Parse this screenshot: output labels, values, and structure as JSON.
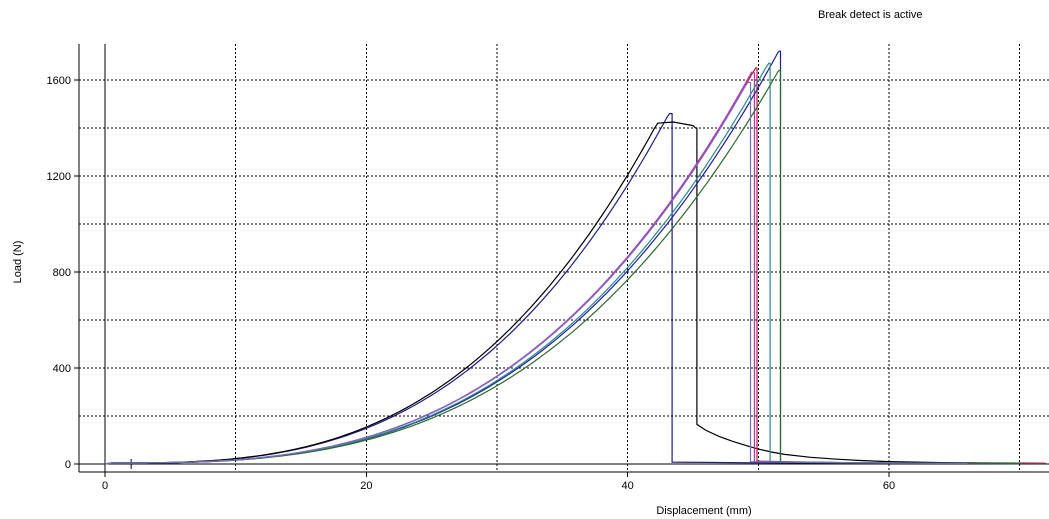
{
  "status_text": "Break detect is active",
  "chart_data": {
    "type": "line",
    "xlabel": "Displacement (mm)",
    "ylabel": "Load (N)",
    "xlim": [
      -2,
      72
    ],
    "ylim": [
      -30,
      1750
    ],
    "x_ticks": [
      0,
      20,
      40,
      60
    ],
    "y_ticks": [
      0,
      400,
      800,
      1200,
      1600
    ],
    "x_grid": [
      10,
      20,
      30,
      40,
      50,
      60,
      70
    ],
    "y_grid": [
      200,
      400,
      600,
      800,
      1000,
      1200,
      1400,
      1600
    ],
    "grid": true,
    "legend": "none",
    "series": [
      {
        "color": "#1c1c8c",
        "peak_x": 43.2,
        "peak_y": 1460,
        "break_x": 43.4,
        "tail": [
          [
            43.4,
            8
          ],
          [
            50,
            5
          ],
          [
            60,
            3
          ],
          [
            68,
            2
          ]
        ]
      },
      {
        "color": "#000000",
        "peak_x": 42.3,
        "peak_y": 1420,
        "plateau": [
          [
            42.3,
            1420
          ],
          [
            43.5,
            1425
          ],
          [
            45.0,
            1410
          ],
          [
            45.2,
            1400
          ]
        ],
        "break_x": 45.3,
        "tail": [
          [
            45.3,
            165
          ],
          [
            46,
            140
          ],
          [
            47,
            115
          ],
          [
            48,
            95
          ],
          [
            49,
            78
          ],
          [
            50,
            62
          ],
          [
            51,
            50
          ],
          [
            52,
            40
          ],
          [
            54,
            28
          ],
          [
            56,
            20
          ],
          [
            58,
            14
          ],
          [
            60,
            10
          ],
          [
            64,
            6
          ],
          [
            68,
            4
          ],
          [
            72,
            3
          ]
        ]
      },
      {
        "color": "#b01c46",
        "peak_x": 49.8,
        "peak_y": 1650,
        "break_x": 49.9,
        "tail": [
          [
            49.9,
            12
          ],
          [
            56,
            6
          ],
          [
            64,
            3
          ],
          [
            72,
            2
          ]
        ]
      },
      {
        "color": "#c030b0",
        "peak_x": 49.5,
        "peak_y": 1630,
        "break_x": 49.7,
        "tail": [
          [
            49.7,
            10
          ],
          [
            58,
            5
          ],
          [
            66,
            3
          ]
        ]
      },
      {
        "color": "#1e1ea0",
        "peak_x": 51.6,
        "peak_y": 1720,
        "break_x": 51.7,
        "tail": [
          [
            51.7,
            8
          ],
          [
            60,
            4
          ],
          [
            70,
            2
          ]
        ]
      },
      {
        "color": "#2a8a8a",
        "peak_x": 50.8,
        "peak_y": 1670,
        "break_x": 50.9,
        "tail": [
          [
            50.9,
            9
          ],
          [
            60,
            4
          ],
          [
            70,
            2
          ]
        ]
      },
      {
        "color": "#2c6b2c",
        "peak_x": 51.6,
        "peak_y": 1640,
        "break_x": 51.7,
        "tail": [
          [
            51.7,
            7
          ],
          [
            60,
            3
          ],
          [
            70,
            2
          ]
        ]
      },
      {
        "color": "#7070c8",
        "peak_x": 49.2,
        "peak_y": 1590,
        "break_x": 49.4,
        "tail": [
          [
            49.4,
            10
          ],
          [
            58,
            5
          ],
          [
            66,
            3
          ]
        ]
      }
    ]
  }
}
